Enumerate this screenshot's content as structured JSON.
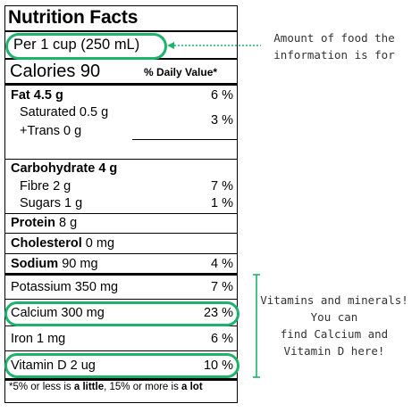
{
  "label": {
    "title": "Nutrition Facts",
    "serving": "Per 1 cup (250 mL)",
    "calories_label": "Calories 90",
    "dv_header": "% Daily Value*",
    "rows": [
      {
        "name": "Fat",
        "amount": "4.5 g",
        "bold": true,
        "pct": "6 %"
      },
      {
        "name": "Saturated 0.5 g",
        "amount": "",
        "bold": false,
        "pct": "3 %"
      },
      {
        "name": "+Trans 0 g",
        "amount": "",
        "bold": false,
        "pct": ""
      },
      {
        "name": "Carbohydrate",
        "amount": "4 g",
        "bold": true,
        "pct": ""
      },
      {
        "name": "Fibre 2 g",
        "amount": "",
        "bold": false,
        "pct": "7 %"
      },
      {
        "name": "Sugars 1 g",
        "amount": "",
        "bold": false,
        "pct": "1 %"
      },
      {
        "name": "Protein",
        "amount": "8 g",
        "bold": true,
        "pct": ""
      },
      {
        "name": "Cholesterol",
        "amount": "0 mg",
        "bold": true,
        "pct": ""
      },
      {
        "name": "Sodium",
        "amount": "90 mg",
        "bold": true,
        "pct": "4 %"
      },
      {
        "name": "Potassium 350 mg",
        "amount": "",
        "bold": false,
        "pct": "7 %"
      },
      {
        "name": "Calcium 300 mg",
        "amount": "",
        "bold": false,
        "pct": "23 %"
      },
      {
        "name": "Iron 1 mg",
        "amount": "",
        "bold": false,
        "pct": "6 %"
      },
      {
        "name": "Vitamin D 2 ug",
        "amount": "",
        "bold": false,
        "pct": "10 %"
      }
    ],
    "footnote": {
      "prefix": "*5% or less is ",
      "little": "a little",
      "middle": ", 15% or more is ",
      "lot": "a lot"
    }
  },
  "annotations": {
    "serving_note_line1": "Amount of food the",
    "serving_note_line2": "information is for",
    "vitamins_line1": "Vitamins and minerals!",
    "vitamins_line2": "You can",
    "vitamins_line3": "find Calcium and",
    "vitamins_line4": "Vitamin D here!"
  },
  "colors": {
    "highlight": "#1db36b",
    "annotation_text": "#333333"
  }
}
